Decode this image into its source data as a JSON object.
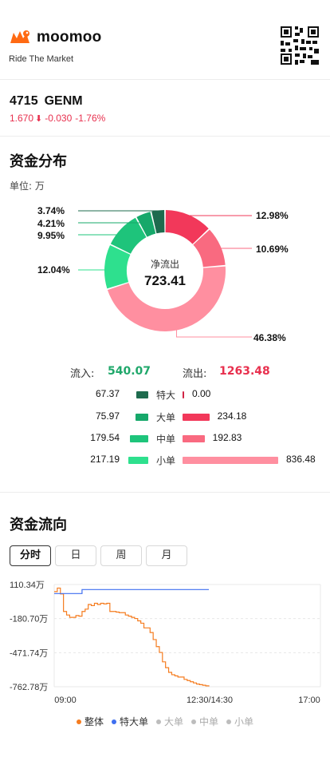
{
  "brand": {
    "name": "moomoo",
    "tagline": "Ride The Market"
  },
  "stock": {
    "code": "4715",
    "name": "GENM",
    "price": "1.670",
    "change": "-0.030",
    "change_pct": "-1.76%",
    "down_color": "#e8304e"
  },
  "distribution": {
    "title": "资金分布",
    "unit_label": "单位: 万",
    "center_label": "净流出",
    "center_value": "723.41",
    "in_label": "流入:",
    "in_total": "540.07",
    "out_label": "流出:",
    "out_total": "1263.48",
    "slices": [
      {
        "key": "in_xl",
        "pct": 3.74,
        "label": "3.74%",
        "color": "#1e6b4e"
      },
      {
        "key": "in_l",
        "pct": 4.21,
        "label": "4.21%",
        "color": "#16a86a"
      },
      {
        "key": "in_m",
        "pct": 9.95,
        "label": "9.95%",
        "color": "#1ec47b"
      },
      {
        "key": "in_s",
        "pct": 12.04,
        "label": "12.04%",
        "color": "#2ee08e"
      },
      {
        "key": "out_s",
        "pct": 46.38,
        "label": "46.38%",
        "color": "#ff8fa0"
      },
      {
        "key": "out_m",
        "pct": 10.69,
        "label": "10.69%",
        "color": "#f96a80"
      },
      {
        "key": "out_l",
        "pct": 12.98,
        "label": "12.98%",
        "color": "#f2385a"
      },
      {
        "key": "out_xl",
        "pct": 0.0,
        "label": "",
        "color": "#d12545"
      }
    ],
    "rows": [
      {
        "cat": "特大",
        "in": "67.37",
        "out": "0.00",
        "in_v": 67.37,
        "out_v": 0.0,
        "in_color": "#1e6b4e",
        "out_color": "#d12545"
      },
      {
        "cat": "大单",
        "in": "75.97",
        "out": "234.18",
        "in_v": 75.97,
        "out_v": 234.18,
        "in_color": "#16a86a",
        "out_color": "#f2385a"
      },
      {
        "cat": "中单",
        "in": "179.54",
        "out": "192.83",
        "in_v": 179.54,
        "out_v": 192.83,
        "in_color": "#1ec47b",
        "out_color": "#f96a80"
      },
      {
        "cat": "小单",
        "in": "217.19",
        "out": "836.48",
        "in_v": 217.19,
        "out_v": 836.48,
        "in_color": "#2ee08e",
        "out_color": "#ff8fa0"
      }
    ]
  },
  "flow": {
    "title": "资金流向",
    "tabs": [
      {
        "label": "分时",
        "active": true
      },
      {
        "label": "日",
        "active": false
      },
      {
        "label": "周",
        "active": false
      },
      {
        "label": "月",
        "active": false
      }
    ],
    "legend": [
      {
        "label": "整体",
        "color": "#f57c1f",
        "active": true
      },
      {
        "label": "特大单",
        "color": "#3f6ff0",
        "active": true
      },
      {
        "label": "大单",
        "color": "#bdbdbd",
        "active": false
      },
      {
        "label": "中单",
        "color": "#bdbdbd",
        "active": false
      },
      {
        "label": "小单",
        "color": "#bdbdbd",
        "active": false
      }
    ]
  },
  "chart_data": {
    "type": "line",
    "title": "资金流向",
    "x_ticks": [
      "09:00",
      "12:30/14:30",
      "17:00"
    ],
    "y_ticks": [
      "110.34万",
      "-180.70万",
      "-471.74万",
      "-762.78万"
    ],
    "ylim": [
      -762.78,
      110.34
    ],
    "grid": true,
    "series": [
      {
        "name": "整体",
        "color": "#f57c1f",
        "x": [
          0,
          2,
          4,
          6,
          8,
          10,
          12,
          14,
          16,
          18,
          20,
          22,
          24,
          26,
          28,
          30,
          32,
          34,
          36,
          38,
          40,
          42,
          44,
          46,
          48,
          50,
          52,
          54,
          56,
          58,
          60,
          62,
          64,
          66,
          68,
          70,
          72,
          74,
          76,
          78,
          80,
          82,
          84,
          86,
          88,
          90,
          92,
          94,
          96,
          98,
          100
        ],
        "y": [
          50,
          80,
          30,
          -120,
          -150,
          -170,
          -170,
          -155,
          -160,
          -120,
          -100,
          -60,
          -70,
          -50,
          -60,
          -50,
          -55,
          -50,
          -120,
          -120,
          -125,
          -130,
          -130,
          -150,
          -160,
          -170,
          -180,
          -200,
          -220,
          -260,
          -260,
          -300,
          -360,
          -420,
          -470,
          -550,
          -600,
          -640,
          -660,
          -670,
          -680,
          -680,
          -700,
          -710,
          -720,
          -730,
          -740,
          -745,
          -750,
          -755,
          -760
        ]
      },
      {
        "name": "特大单",
        "color": "#3f6ff0",
        "x": [
          0,
          2,
          4,
          6,
          8,
          10,
          12,
          14,
          16,
          18,
          20,
          100
        ],
        "y": [
          67.37,
          67.37,
          67.37,
          67.37,
          67.37,
          67.37,
          67.37,
          67.37,
          67.37,
          67.37,
          67.37,
          67.37
        ]
      }
    ]
  }
}
